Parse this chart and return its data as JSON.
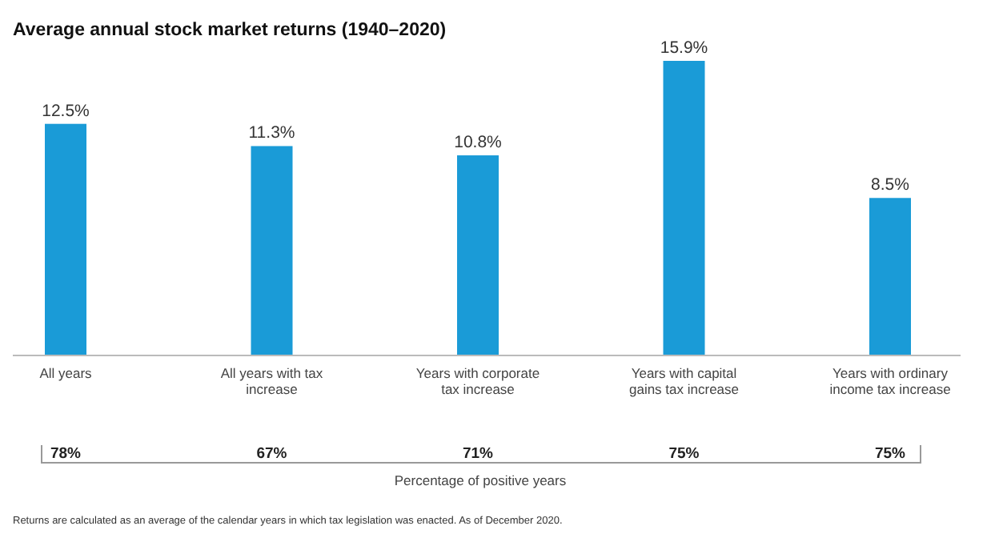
{
  "chart_data": {
    "type": "bar",
    "title": "Average annual stock market returns (1940–2020)",
    "categories": [
      "All years",
      "All years with tax increase",
      "Years with corporate tax increase",
      "Years with capital gains tax increase",
      "Years with ordinary income tax increase"
    ],
    "values": [
      12.5,
      11.3,
      10.8,
      15.9,
      8.5
    ],
    "color": "#1a9bd7",
    "value_labels": [
      "12.5%",
      "11.3%",
      "10.8%",
      "15.9%",
      "8.5%"
    ],
    "annotations": [
      "78%",
      "67%",
      "71%",
      "75%",
      "75%",
      "Percentage of positive years",
      "Returns are calculated as an average of the calendar years in which tax legislation was enacted. As of December 2020."
    ],
    "grid": false
  }
}
